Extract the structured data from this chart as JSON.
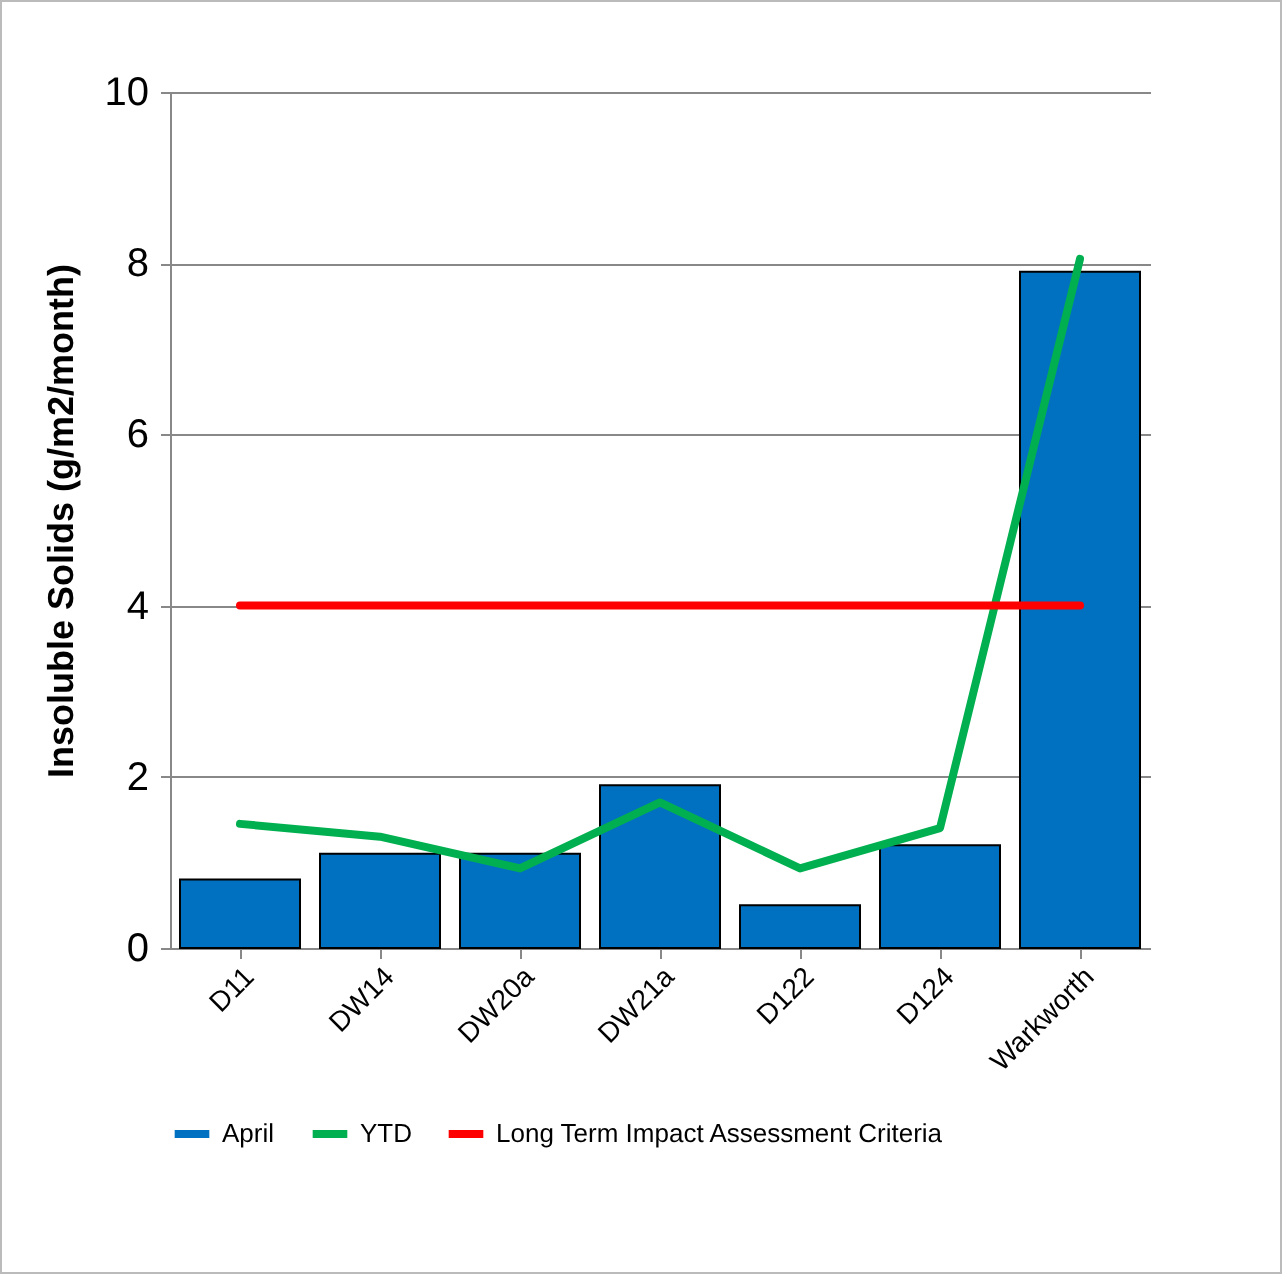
{
  "chart_data": {
    "type": "bar",
    "ylabel": "Insoluble Solids (g/m2/month)",
    "categories": [
      "D11",
      "DW14",
      "DW20a",
      "DW21a",
      "D122",
      "D124",
      "Warkworth"
    ],
    "series": [
      {
        "name": "April",
        "color": "#0070c0",
        "values": [
          0.8,
          1.1,
          1.1,
          1.9,
          0.5,
          1.2,
          7.9
        ]
      },
      {
        "name": "YTD",
        "type": "line",
        "color": "#00b050",
        "values": [
          1.45,
          1.3,
          0.93,
          1.7,
          0.93,
          1.4,
          8.05
        ]
      },
      {
        "name": "Long Term Impact Assessment Criteria",
        "type": "line",
        "color": "#ff0000",
        "values": [
          4,
          4,
          4,
          4,
          4,
          4,
          4
        ]
      }
    ],
    "ylim": [
      0,
      10
    ],
    "yticks": [
      0,
      2,
      4,
      6,
      8,
      10
    ],
    "grid": "y",
    "legend": "bottom"
  }
}
